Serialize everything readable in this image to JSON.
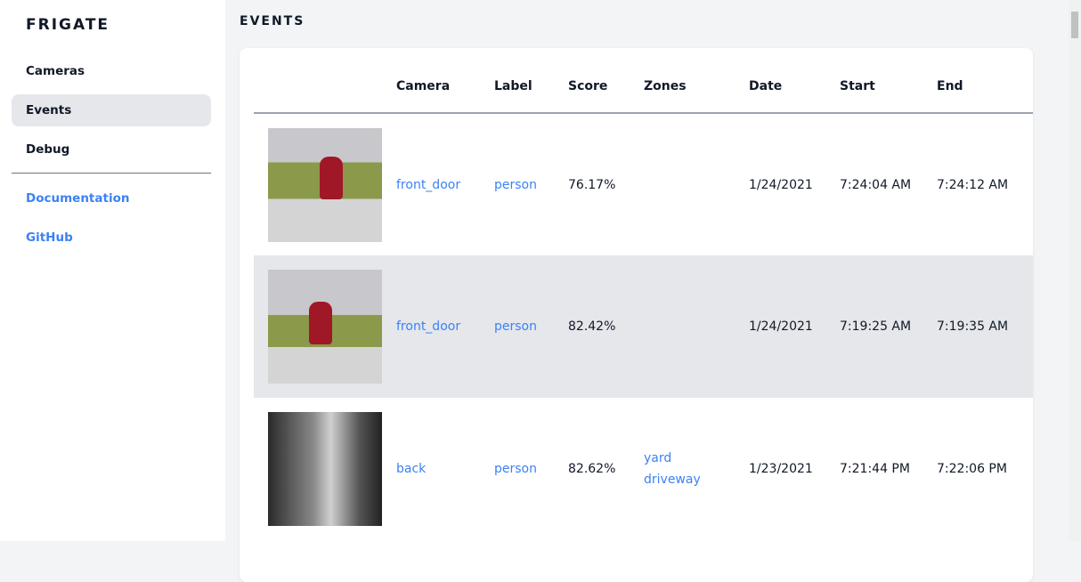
{
  "sidebar": {
    "brand": "FRIGATE",
    "items": [
      {
        "label": "Cameras"
      },
      {
        "label": "Events",
        "active": true
      },
      {
        "label": "Debug"
      }
    ],
    "links": [
      {
        "label": "Documentation"
      },
      {
        "label": "GitHub"
      }
    ]
  },
  "main": {
    "title": "EVENTS",
    "columns": [
      "",
      "Camera",
      "Label",
      "Score",
      "Zones",
      "Date",
      "Start",
      "End"
    ],
    "rows": [
      {
        "camera": "front_door",
        "label": "person",
        "score": "76.17%",
        "zones": [
          "",
          ""
        ],
        "date": "1/24/2021",
        "start": "7:24:04 AM",
        "end": "7:24:12 AM"
      },
      {
        "camera": "front_door",
        "label": "person",
        "score": "82.42%",
        "zones": [
          "",
          ""
        ],
        "date": "1/24/2021",
        "start": "7:19:25 AM",
        "end": "7:19:35 AM"
      },
      {
        "camera": "back",
        "label": "person",
        "score": "82.62%",
        "zones": [
          "yard",
          "driveway"
        ],
        "date": "1/23/2021",
        "start": "7:21:44 PM",
        "end": "7:22:06 PM"
      }
    ]
  },
  "colors": {
    "link": "#3b82f6",
    "active_bg": "#e5e7eb"
  }
}
